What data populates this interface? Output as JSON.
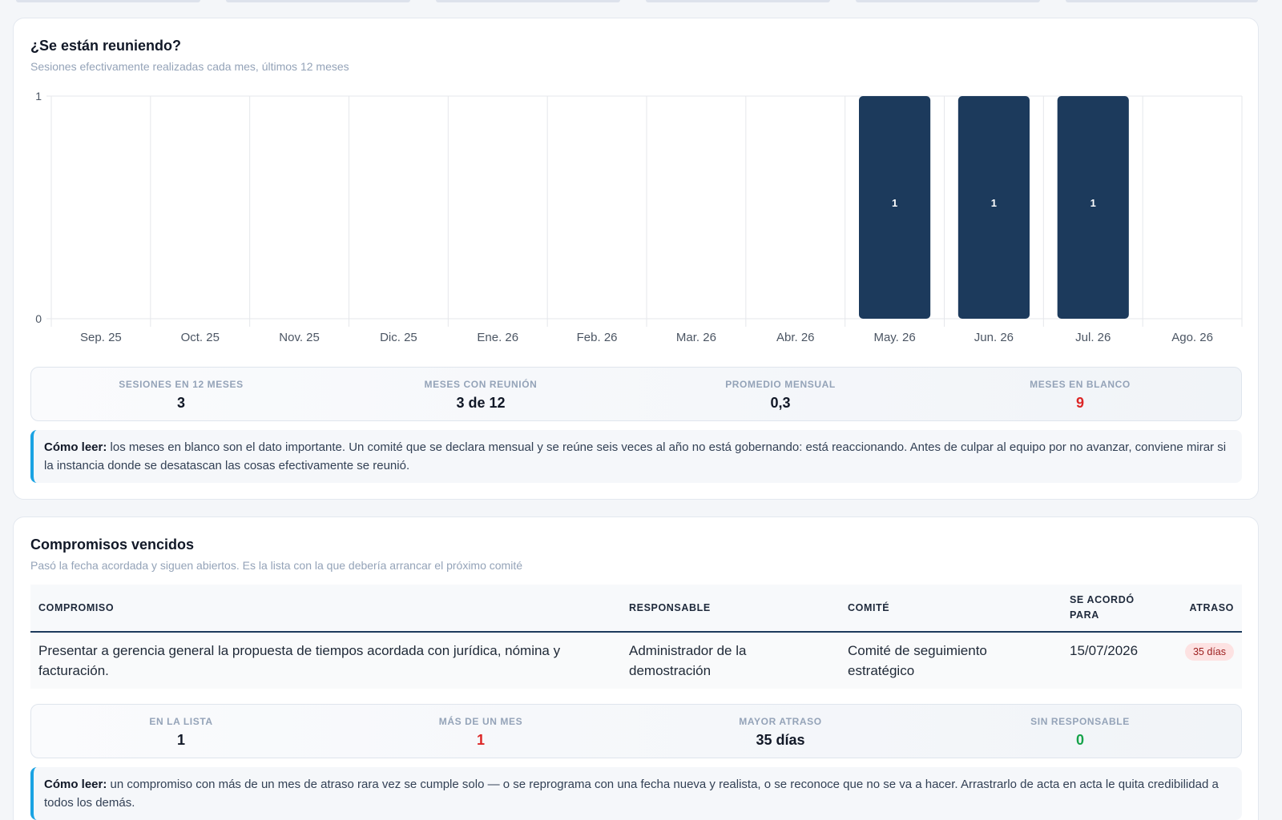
{
  "meetings_card": {
    "title": "¿Se están reuniendo?",
    "subtitle": "Sesiones efectivamente realizadas cada mes, últimos 12 meses",
    "stats": [
      {
        "label": "SESIONES EN 12 MESES",
        "value": "3",
        "color": "#111827"
      },
      {
        "label": "MESES CON REUNIÓN",
        "value": "3 de 12",
        "color": "#111827"
      },
      {
        "label": "PROMEDIO MENSUAL",
        "value": "0,3",
        "color": "#111827"
      },
      {
        "label": "MESES EN BLANCO",
        "value": "9",
        "color": "#dc2626"
      }
    ],
    "note_lead": "Cómo leer:",
    "note_text": "los meses en blanco son el dato importante. Un comité que se declara mensual y se reúne seis veces al año no está gobernando: está reaccionando. Antes de culpar al equipo por no avanzar, conviene mirar si la instancia donde se desatascan las cosas efectivamente se reunió."
  },
  "chart_data": {
    "type": "bar",
    "categories": [
      "Sep. 25",
      "Oct. 25",
      "Nov. 25",
      "Dic. 25",
      "Ene. 26",
      "Feb. 26",
      "Mar. 26",
      "Abr. 26",
      "May. 26",
      "Jun. 26",
      "Jul. 26",
      "Ago. 26"
    ],
    "values": [
      0,
      0,
      0,
      0,
      0,
      0,
      0,
      0,
      1,
      1,
      1,
      0
    ],
    "data_labels": [
      "",
      "",
      "",
      "",
      "",
      "",
      "",
      "",
      "1",
      "1",
      "1",
      ""
    ],
    "yticks": [
      "0",
      "1"
    ],
    "ylim": [
      0,
      1
    ],
    "grid": true,
    "bar_color": "#1c3a5c",
    "title": "",
    "xlabel": "",
    "ylabel": ""
  },
  "overdue_card": {
    "title": "Compromisos vencidos",
    "subtitle": "Pasó la fecha acordada y siguen abiertos. Es la lista con la que debería arrancar el próximo comité",
    "columns": [
      "COMPROMISO",
      "RESPONSABLE",
      "COMITÉ",
      "SE ACORDÓ PARA",
      "ATRASO"
    ],
    "rows": [
      {
        "commitment": "Presentar a gerencia general la propuesta de tiempos acordada con jurídica, nómina y facturación.",
        "owner": "Administrador de la demostración",
        "committee": "Comité de seguimiento estratégico",
        "agreed_for": "15/07/2026",
        "delay": "35 días"
      }
    ],
    "stats": [
      {
        "label": "EN LA LISTA",
        "value": "1",
        "color": "#111827"
      },
      {
        "label": "MÁS DE UN MES",
        "value": "1",
        "color": "#dc2626"
      },
      {
        "label": "MAYOR ATRASO",
        "value": "35 días",
        "color": "#111827"
      },
      {
        "label": "SIN RESPONSABLE",
        "value": "0",
        "color": "#16a34a"
      }
    ],
    "note_lead": "Cómo leer:",
    "note_text": "un compromiso con más de un mes de atraso rara vez se cumple solo — o se reprograma con una fecha nueva y realista, o se reconoce que no se va a hacer. Arrastrarlo de acta en acta le quita credibilidad a todos los demás."
  }
}
